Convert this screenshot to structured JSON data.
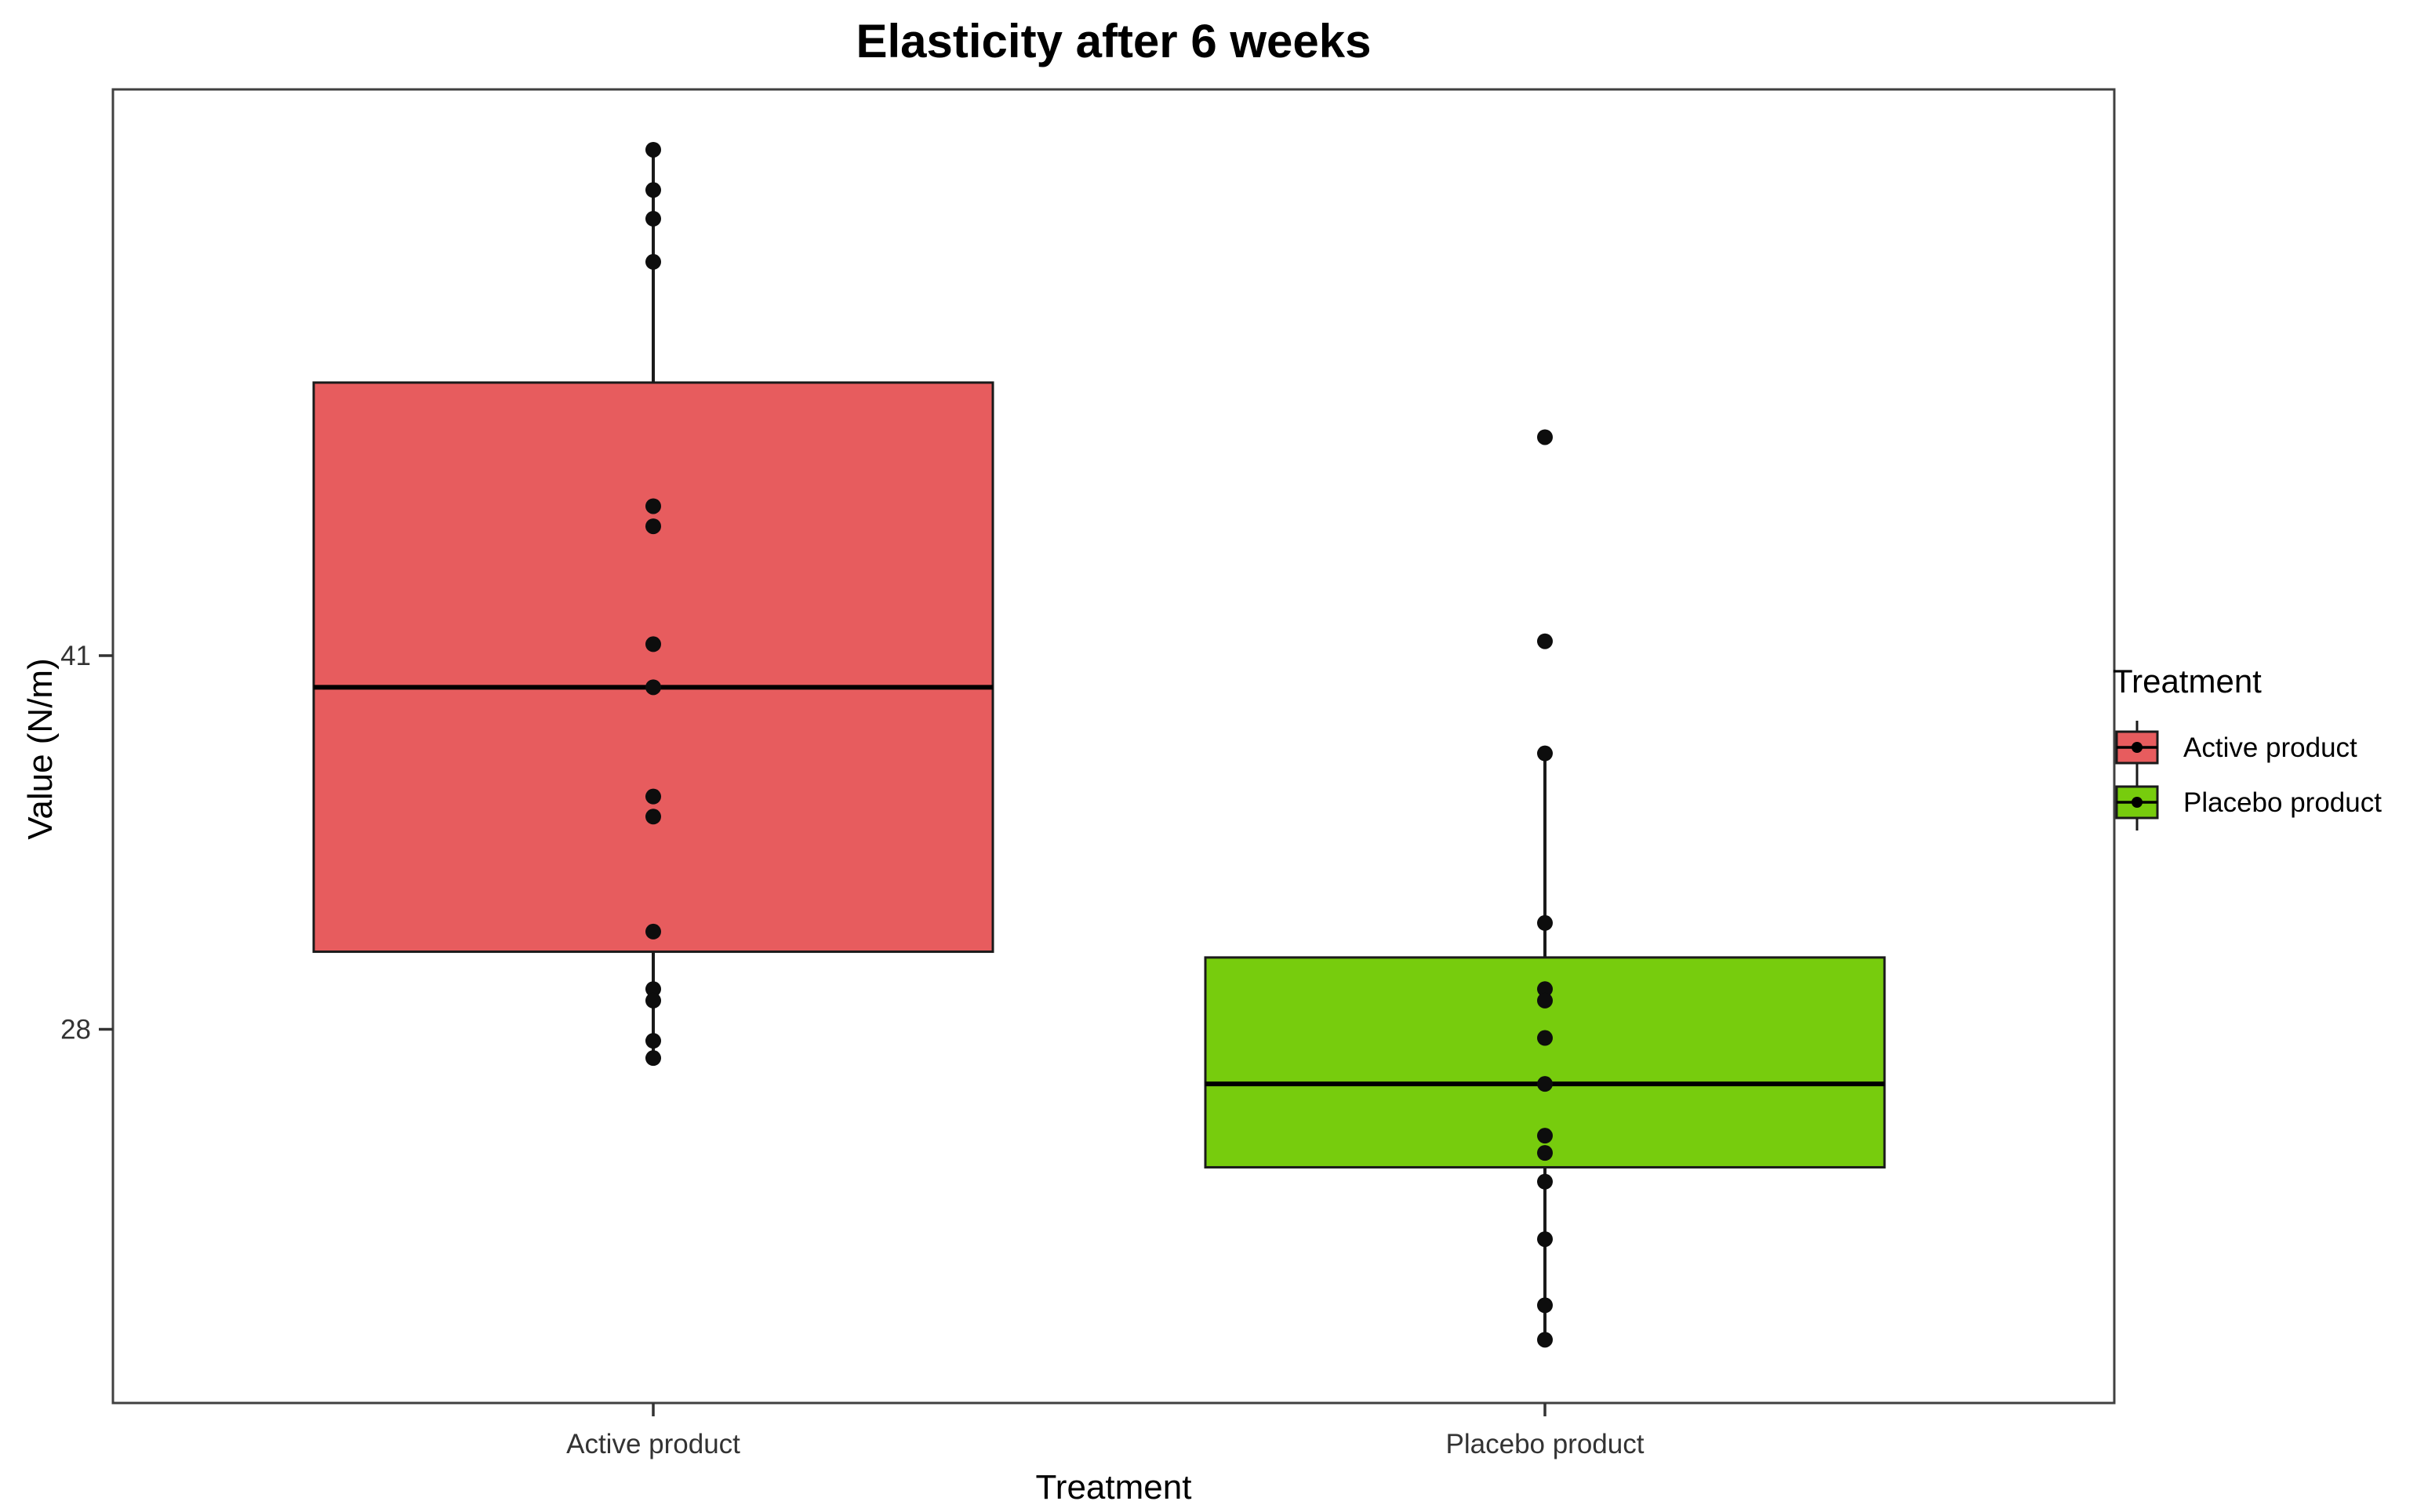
{
  "title": "Elasticity after 6 weeks",
  "axes": {
    "y_label": "Value (N/m)",
    "x_label": "Treatment"
  },
  "legend": {
    "title": "Treatment",
    "items": [
      {
        "label": "Active product",
        "color": "#e75c5e"
      },
      {
        "label": "Placebo product",
        "color": "#77cc0d"
      }
    ]
  },
  "chart_data": {
    "type": "boxplot",
    "title": "Elasticity after 6 weeks",
    "xlabel": "Treatment",
    "ylabel": "Value (N/m)",
    "categories": [
      "Active product",
      "Placebo product"
    ],
    "ylim": [
      15.0,
      60.7
    ],
    "y_ticks": [
      41,
      28
    ],
    "grid": false,
    "legend_position": "right",
    "series": [
      {
        "name": "Active product",
        "color": "#e75c5e",
        "whisker_low": 27.0,
        "q1": 30.7,
        "median": 39.9,
        "q3": 50.5,
        "whisker_high": 58.6,
        "points": [
          58.6,
          57.2,
          56.2,
          54.7,
          46.2,
          45.5,
          41.4,
          39.9,
          36.1,
          35.4,
          31.4,
          29.4,
          29.0,
          27.6,
          27.0
        ]
      },
      {
        "name": "Placebo product",
        "color": "#77cc0d",
        "whisker_low": 17.2,
        "q1": 23.2,
        "median": 26.1,
        "q3": 30.5,
        "whisker_high": 37.6,
        "points": [
          48.6,
          41.5,
          37.6,
          31.7,
          29.4,
          29.0,
          27.7,
          26.1,
          24.3,
          23.7,
          22.7,
          20.7,
          18.4,
          17.2
        ]
      }
    ]
  }
}
